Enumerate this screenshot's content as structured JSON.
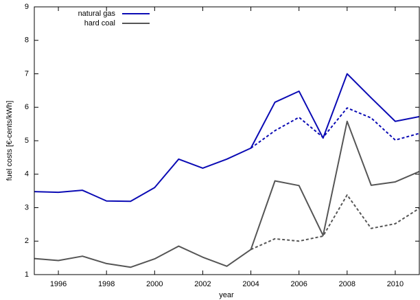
{
  "chart_data": {
    "type": "line",
    "xlabel": "year",
    "ylabel": "fuel costs [€-cents/kWh]",
    "x": [
      1995,
      1996,
      1997,
      1998,
      1999,
      2000,
      2001,
      2002,
      2003,
      2004,
      2005,
      2006,
      2007,
      2008,
      2009,
      2010,
      2011
    ],
    "xlim": [
      1995,
      2011
    ],
    "xticks": [
      1996,
      1998,
      2000,
      2002,
      2004,
      2006,
      2008,
      2010
    ],
    "ylim": [
      1,
      9
    ],
    "yticks": [
      1,
      2,
      3,
      4,
      5,
      6,
      7,
      8,
      9
    ],
    "legend": "top-left",
    "series": [
      {
        "name": "natural gas",
        "color": "#0a0ab4",
        "dash": false,
        "values": [
          3.48,
          3.46,
          3.52,
          3.2,
          3.19,
          3.6,
          4.45,
          4.18,
          4.45,
          4.78,
          6.15,
          6.48,
          5.08,
          7.0,
          6.28,
          5.58,
          5.72
        ]
      },
      {
        "name": "hard coal",
        "color": "#555555",
        "dash": false,
        "values": [
          1.48,
          1.42,
          1.55,
          1.33,
          1.22,
          1.47,
          1.85,
          1.52,
          1.25,
          1.75,
          3.8,
          3.66,
          2.17,
          5.58,
          3.67,
          3.77,
          4.08
        ]
      },
      {
        "color": "#0a0ab4",
        "dash": true,
        "values": [
          null,
          null,
          null,
          null,
          null,
          null,
          null,
          null,
          null,
          4.78,
          5.3,
          5.7,
          5.1,
          5.98,
          5.68,
          5.02,
          5.22
        ]
      },
      {
        "color": "#555555",
        "dash": true,
        "values": [
          null,
          null,
          null,
          null,
          null,
          null,
          null,
          null,
          null,
          1.75,
          2.07,
          2.0,
          2.15,
          3.38,
          2.38,
          2.52,
          2.98
        ]
      }
    ]
  }
}
